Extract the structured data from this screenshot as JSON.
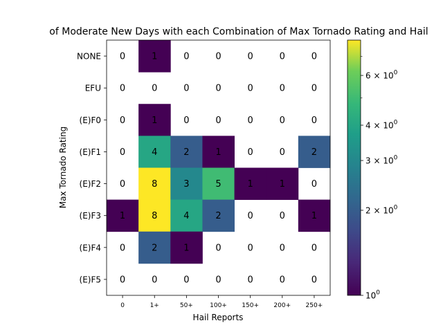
{
  "chart_data": {
    "type": "heatmap",
    "title": "of Moderate New Days with each Combination of Max Tornado Rating and Hail",
    "xlabel": "Hail Reports",
    "ylabel": "Max Tornado Rating",
    "x_categories": [
      "0",
      "1+",
      "50+",
      "100+",
      "150+",
      "200+",
      "250+"
    ],
    "y_categories": [
      "NONE",
      "EFU",
      "(E)F0",
      "(E)F1",
      "(E)F2",
      "(E)F3",
      "(E)F4",
      "(E)F5"
    ],
    "values": [
      [
        0,
        1,
        0,
        0,
        0,
        0,
        0
      ],
      [
        0,
        0,
        0,
        0,
        0,
        0,
        0
      ],
      [
        0,
        1,
        0,
        0,
        0,
        0,
        0
      ],
      [
        0,
        4,
        2,
        1,
        0,
        0,
        2
      ],
      [
        0,
        8,
        3,
        5,
        1,
        1,
        0
      ],
      [
        1,
        8,
        4,
        2,
        0,
        0,
        1
      ],
      [
        0,
        2,
        1,
        0,
        0,
        0,
        0
      ],
      [
        0,
        0,
        0,
        0,
        0,
        0,
        0
      ]
    ],
    "colorbar": {
      "scale": "log",
      "colormap": "viridis",
      "range": [
        1,
        8
      ],
      "ticks": [
        {
          "value": 1,
          "base": "10",
          "exp": "0",
          "prefix": ""
        },
        {
          "value": 2,
          "base": "10",
          "exp": "0",
          "prefix": "2 × "
        },
        {
          "value": 3,
          "base": "10",
          "exp": "0",
          "prefix": "3 × "
        },
        {
          "value": 4,
          "base": "10",
          "exp": "0",
          "prefix": "4 × "
        },
        {
          "value": 6,
          "base": "10",
          "exp": "0",
          "prefix": "6 × "
        }
      ]
    },
    "zero_cells": "white (masked)",
    "grid": false
  }
}
